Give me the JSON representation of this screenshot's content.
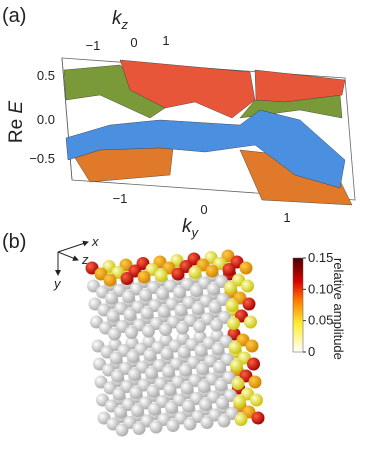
{
  "panel_a": {
    "label": "(a)",
    "kz_axis": {
      "symbol": "k",
      "subscript": "z",
      "ticks": [
        "−1",
        "0",
        "1"
      ]
    },
    "energy_axis": {
      "prefix": "Re ",
      "symbol": "E",
      "ticks": [
        "0.5",
        "0.0",
        "−0.5"
      ]
    },
    "ky_axis": {
      "symbol": "k",
      "subscript": "y",
      "ticks": [
        "−1",
        "0",
        "1"
      ]
    }
  },
  "panel_b": {
    "label": "(b)",
    "axes": {
      "x": "x",
      "z": "z",
      "y": "y"
    },
    "colorbar": {
      "label": "relative amplitude",
      "range": [
        0,
        0.15
      ],
      "ticks": [
        {
          "value": 0.15,
          "label": "0.15"
        },
        {
          "value": 0.1,
          "label": "0.10"
        },
        {
          "value": 0.05,
          "label": "0.05"
        },
        {
          "value": 0,
          "label": "0"
        }
      ]
    }
  }
}
